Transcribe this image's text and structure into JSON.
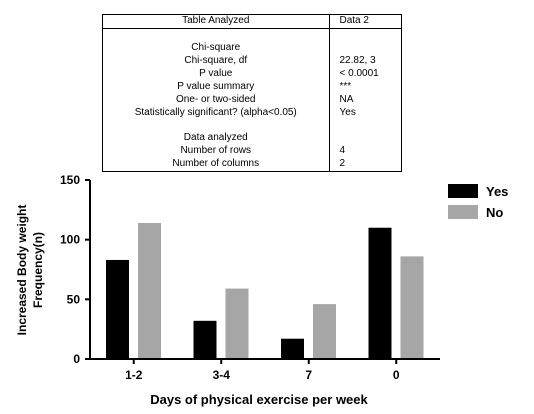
{
  "table": {
    "rows": [
      [
        "Table Analyzed",
        "Data 2"
      ],
      [
        "",
        ""
      ],
      [
        "Chi-square",
        ""
      ],
      [
        "Chi-square, df",
        "22.82, 3"
      ],
      [
        "P value",
        "< 0.0001"
      ],
      [
        "P value summary",
        "***"
      ],
      [
        "One- or two-sided",
        "NA"
      ],
      [
        "Statistically significant? (alpha<0.05)",
        "Yes"
      ],
      [
        "",
        ""
      ],
      [
        "Data analyzed",
        ""
      ],
      [
        "Number of rows",
        "4"
      ],
      [
        "Number of columns",
        "2"
      ]
    ]
  },
  "chart_data": {
    "type": "bar",
    "categories": [
      "1-2",
      "3-4",
      "7",
      "0"
    ],
    "series": [
      {
        "name": "Yes",
        "values": [
          83,
          32,
          17,
          110
        ],
        "color": "#000000"
      },
      {
        "name": "No",
        "values": [
          114,
          59,
          46,
          86
        ],
        "color": "#a6a6a6"
      }
    ],
    "xlabel": "Days of physical exercise per week",
    "ylabel_lines": [
      "Increased Body weight",
      "Frequency(n)"
    ],
    "ylim": [
      0,
      150
    ],
    "yticks": [
      0,
      50,
      100,
      150
    ],
    "grid": false,
    "legend": "top-right"
  }
}
